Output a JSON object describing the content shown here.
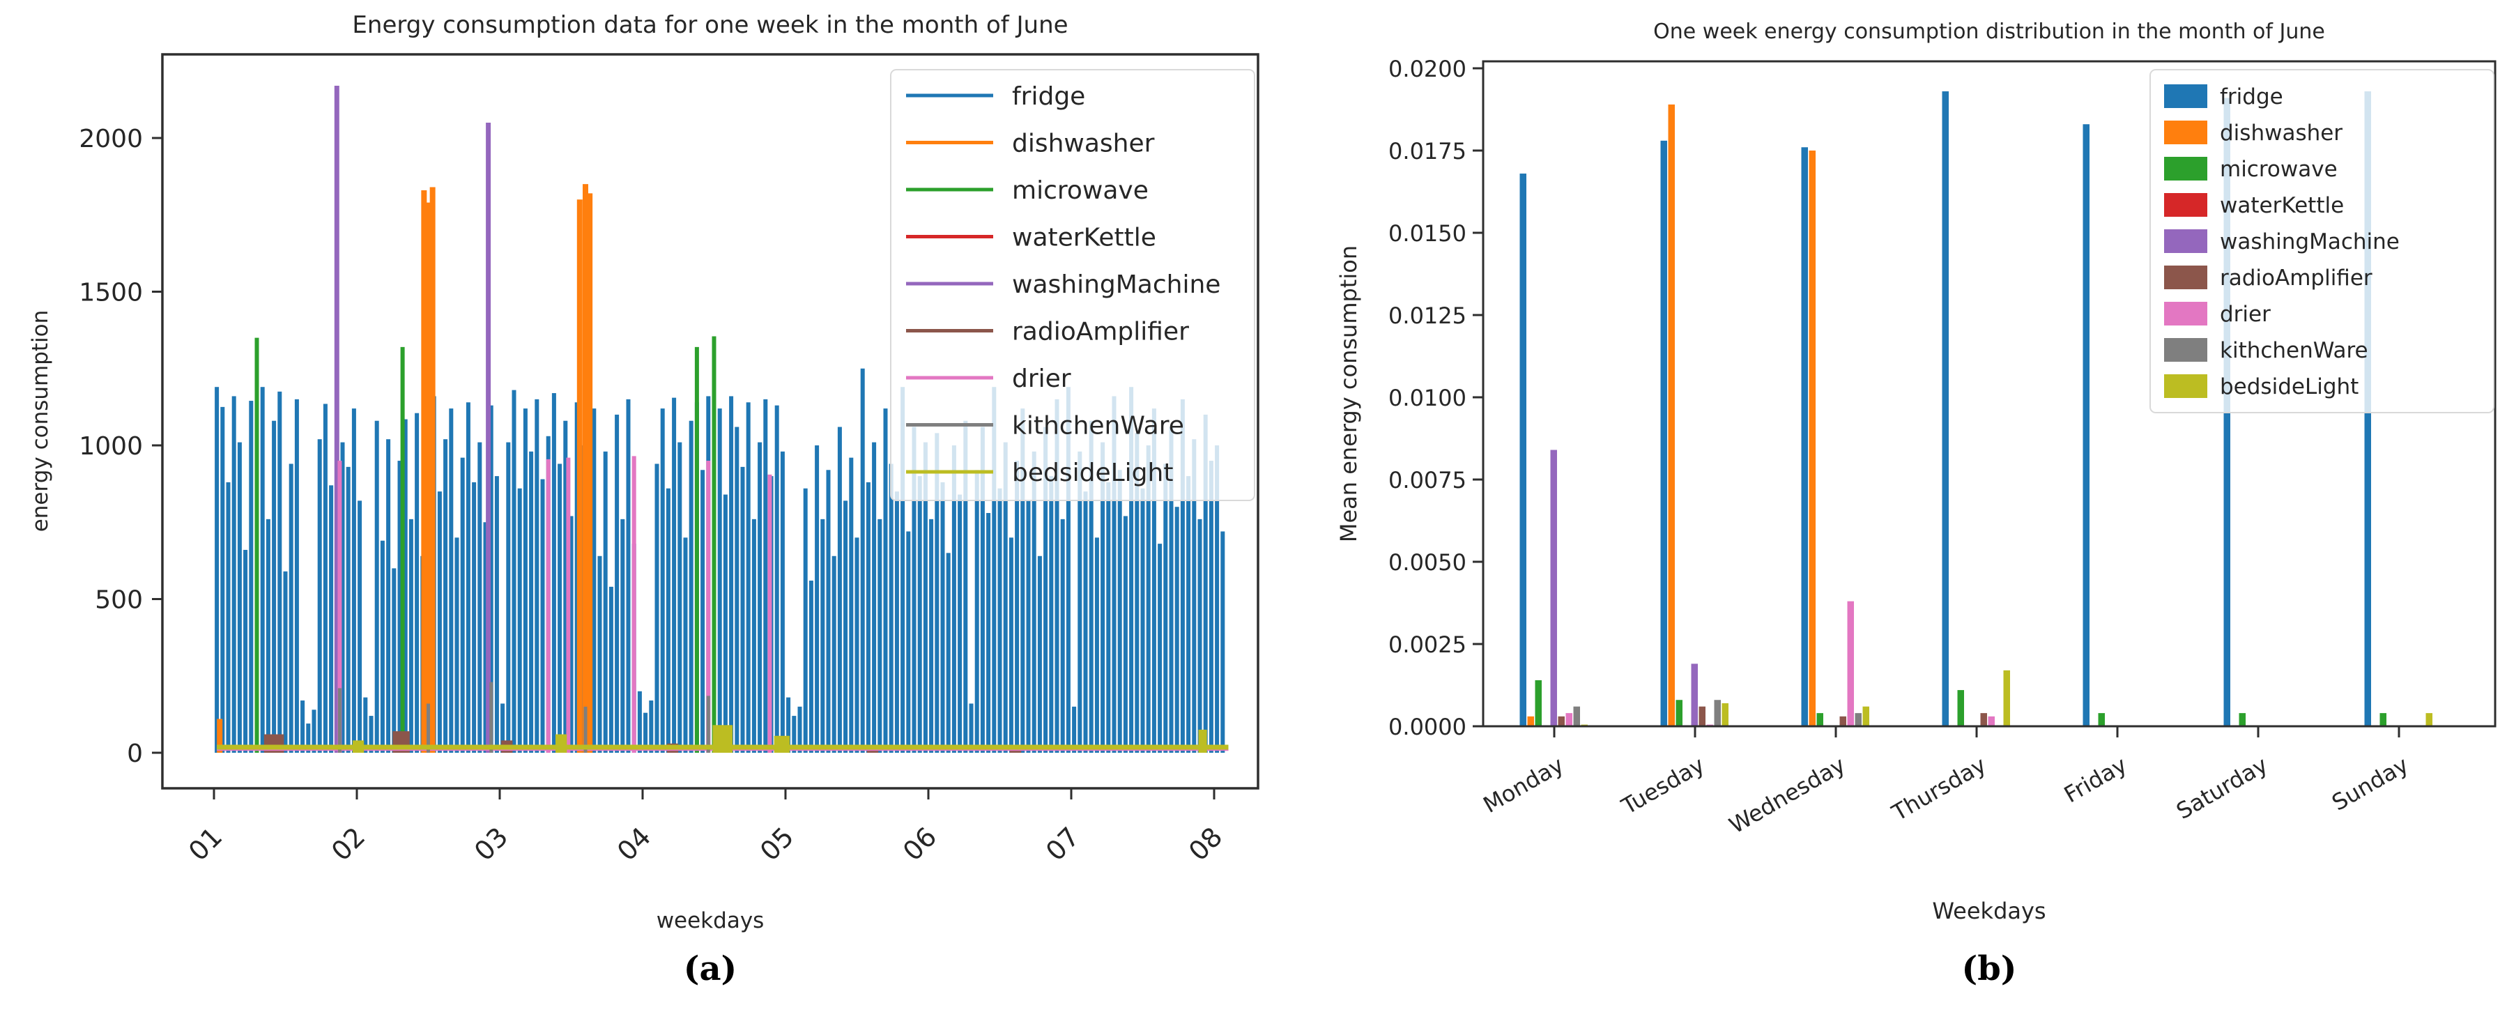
{
  "figure": {
    "caption_a": "(a)",
    "caption_b": "(b)"
  },
  "chart_data": [
    {
      "type": "line",
      "title": "Energy consumption data for one week in the month of June",
      "xlabel": "weekdays",
      "ylabel": "energy consumption",
      "caption": "(a)",
      "xtick_labels": [
        "01",
        "02",
        "03",
        "04",
        "05",
        "06",
        "07",
        "08"
      ],
      "ytick_values": [
        0,
        500,
        1000,
        1500,
        2000
      ],
      "xlim": [
        0.64,
        8.31
      ],
      "ylim": [
        -115,
        2272
      ],
      "grid": false,
      "legend_position": "upper right",
      "series": [
        {
          "name": "fridge",
          "color": "#1f77b4",
          "render": "dense",
          "x_start": 1.02,
          "x_step": 0.04,
          "values": [
            1190,
            1125,
            880,
            1160,
            1010,
            660,
            1145,
            985,
            1190,
            760,
            1080,
            1175,
            590,
            940,
            1150,
            170,
            95,
            140,
            1020,
            1135,
            870,
            1190,
            1010,
            930,
            1120,
            820,
            180,
            120,
            1080,
            690,
            1020,
            600,
            950,
            1085,
            760,
            1105,
            640,
            980,
            1160,
            850,
            1020,
            1120,
            700,
            960,
            1140,
            880,
            1010,
            750,
            1130,
            900,
            160,
            1010,
            1180,
            860,
            1120,
            980,
            1150,
            890,
            1030,
            1170,
            940,
            1080,
            770,
            1140,
            1000,
            860,
            1120,
            640,
            980,
            540,
            1100,
            760,
            1150,
            680,
            200,
            130,
            170,
            940,
            1120,
            860,
            1155,
            1010,
            700,
            1080,
            1140,
            920,
            1160,
            990,
            1120,
            840,
            1160,
            1060,
            930,
            1140,
            760,
            1010,
            1150,
            900,
            1130,
            980,
            180,
            120,
            150,
            860,
            560,
            1000,
            760,
            920,
            640,
            1060,
            820,
            960,
            700,
            1250,
            880,
            1010,
            760,
            1120,
            940,
            850,
            1190,
            720,
            1060,
            900,
            1010,
            760,
            1040,
            880,
            650,
            1000,
            840,
            1080,
            160,
            920,
            1060,
            780,
            1190,
            860,
            1010,
            700,
            950,
            1120,
            820,
            980,
            640,
            1060,
            900,
            1150,
            760,
            1190,
            150,
            980,
            850,
            1080,
            700,
            1010,
            880,
            1160,
            920,
            770,
            1190,
            1040,
            860,
            1000,
            1120,
            680,
            940,
            1060,
            800,
            1150,
            900,
            1020,
            760,
            1100,
            950,
            1000,
            720
          ]
        },
        {
          "name": "dishwasher",
          "color": "#ff7f0e",
          "render": "spikes",
          "spike_width": 8,
          "spikes": [
            [
              1.04,
              110
            ],
            [
              2.47,
              1830
            ],
            [
              2.5,
              1790
            ],
            [
              2.53,
              1840
            ],
            [
              3.56,
              1800
            ],
            [
              3.6,
              1850
            ],
            [
              3.63,
              1820
            ]
          ]
        },
        {
          "name": "microwave",
          "color": "#2ca02c",
          "render": "spikes",
          "spike_width": 6,
          "spikes": [
            [
              1.3,
              1350
            ],
            [
              2.32,
              1320
            ],
            [
              4.38,
              1320
            ],
            [
              4.5,
              1355
            ]
          ]
        },
        {
          "name": "waterKettle",
          "color": "#d62728",
          "render": "spikes",
          "spike_width": 4,
          "spikes": []
        },
        {
          "name": "washingMachine",
          "color": "#9467bd",
          "render": "spikes",
          "spike_width": 7,
          "spikes": [
            [
              1.86,
              2170
            ],
            [
              2.92,
              2050
            ]
          ]
        },
        {
          "name": "radioAmplifier",
          "color": "#8c564b",
          "render": "bumps",
          "bumps": [
            [
              1.36,
              1.48,
              60
            ],
            [
              2.26,
              2.36,
              70
            ],
            [
              3.02,
              3.08,
              40
            ],
            [
              4.18,
              4.24,
              30
            ],
            [
              5.58,
              5.64,
              25
            ],
            [
              6.58,
              6.64,
              20
            ]
          ]
        },
        {
          "name": "drier",
          "color": "#e377c2",
          "render": "baseline-spikes",
          "baseline": 12,
          "spike_width": 6,
          "spikes": [
            [
              1.88,
              950
            ],
            [
              3.34,
              955
            ],
            [
              3.48,
              960
            ],
            [
              3.94,
              965
            ],
            [
              4.46,
              950
            ],
            [
              4.89,
              905
            ]
          ]
        },
        {
          "name": "kithchenWare",
          "color": "#7f7f7f",
          "render": "spikes",
          "spike_width": 5,
          "spikes": [
            [
              1.88,
              210
            ],
            [
              2.5,
              160
            ],
            [
              2.94,
              230
            ],
            [
              3.6,
              150
            ],
            [
              4.46,
              185
            ]
          ]
        },
        {
          "name": "bedsideLight",
          "color": "#bcbd22",
          "render": "baseline-bumps",
          "baseline": 18,
          "bumps": [
            [
              1.98,
              2.04,
              40
            ],
            [
              3.4,
              3.46,
              60
            ],
            [
              4.5,
              4.62,
              90
            ],
            [
              4.93,
              5.02,
              55
            ],
            [
              7.9,
              7.94,
              75
            ]
          ]
        }
      ]
    },
    {
      "type": "bar",
      "title": "One week energy consumption distribution in the month of June",
      "xlabel": "Weekdays",
      "ylabel": "Mean energy consumption",
      "caption": "(b)",
      "categories": [
        "Monday",
        "Tuesday",
        "Wednesday",
        "Thursday",
        "Friday",
        "Saturday",
        "Sunday"
      ],
      "ytick_values": [
        0.0,
        0.0025,
        0.005,
        0.0075,
        0.01,
        0.0125,
        0.015,
        0.0175,
        0.02
      ],
      "ylim": [
        0,
        0.02
      ],
      "grid": false,
      "legend_position": "upper right",
      "series": [
        {
          "name": "fridge",
          "color": "#1f77b4",
          "values": [
            0.0168,
            0.0178,
            0.0176,
            0.0193,
            0.0183,
            0.0191,
            0.0193
          ]
        },
        {
          "name": "dishwasher",
          "color": "#ff7f0e",
          "values": [
            0.0003,
            0.0189,
            0.0175,
            0,
            0,
            0,
            0
          ]
        },
        {
          "name": "microwave",
          "color": "#2ca02c",
          "values": [
            0.0014,
            0.0008,
            0.0004,
            0.0011,
            0.0004,
            0.0004,
            0.0004
          ]
        },
        {
          "name": "waterKettle",
          "color": "#d62728",
          "values": [
            0,
            0,
            0,
            0,
            0,
            0,
            0
          ]
        },
        {
          "name": "washingMachine",
          "color": "#9467bd",
          "values": [
            0.0084,
            0.0019,
            0,
            0,
            0,
            0,
            0
          ]
        },
        {
          "name": "radioAmplifier",
          "color": "#8c564b",
          "values": [
            0.0003,
            0.0006,
            0.0003,
            0.0004,
            0,
            0,
            0
          ]
        },
        {
          "name": "drier",
          "color": "#e377c2",
          "values": [
            0.0004,
            5e-05,
            0.0038,
            0.0003,
            0,
            0,
            0
          ]
        },
        {
          "name": "kithchenWare",
          "color": "#7f7f7f",
          "values": [
            0.0006,
            0.0008,
            0.0004,
            0,
            0,
            0,
            0
          ]
        },
        {
          "name": "bedsideLight",
          "color": "#bcbd22",
          "values": [
            5e-05,
            0.0007,
            0.0006,
            0.0017,
            0,
            0,
            0.0004
          ]
        }
      ]
    }
  ],
  "colors": {
    "spine": "#2e2e2e",
    "text": "#262626",
    "legend_border": "#d9d9d9",
    "legend_bg_alpha": 0.8
  }
}
